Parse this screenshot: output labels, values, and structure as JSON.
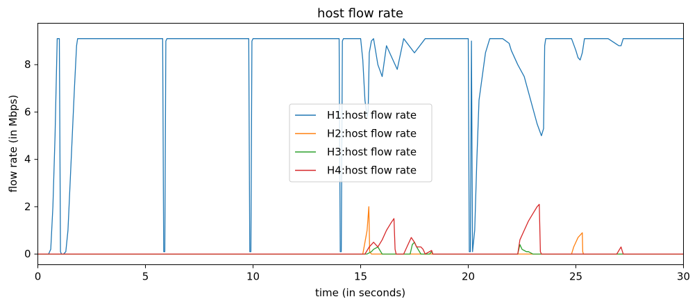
{
  "chart_data": {
    "type": "line",
    "title": "host flow rate",
    "xlabel": "time (in seconds)",
    "ylabel": "flow rate (in Mbps)",
    "xlim": [
      0,
      30
    ],
    "ylim": [
      -0.45,
      9.75
    ],
    "xticks": [
      0,
      5,
      10,
      15,
      20,
      25,
      30
    ],
    "xtick_labels": [
      "0",
      "5",
      "10",
      "15",
      "20",
      "25",
      "30"
    ],
    "yticks": [
      0,
      2,
      4,
      6,
      8
    ],
    "ytick_labels": [
      "0",
      "2",
      "4",
      "6",
      "8"
    ],
    "grid": false,
    "legend_position": "center",
    "series": [
      {
        "name": "H1:host flow rate",
        "color": "#1f77b4",
        "x": [
          0,
          0.5,
          0.55,
          0.6,
          0.7,
          0.8,
          0.85,
          0.9,
          1.0,
          1.05,
          1.1,
          1.2,
          1.3,
          1.4,
          1.5,
          1.6,
          1.7,
          1.8,
          1.85,
          5.8,
          5.85,
          5.9,
          5.95,
          6.0,
          6.1,
          9.8,
          9.85,
          9.9,
          9.95,
          10.0,
          10.1,
          14.0,
          14.05,
          14.1,
          14.15,
          14.2,
          14.3,
          15.0,
          15.1,
          15.2,
          15.3,
          15.35,
          15.4,
          15.5,
          15.6,
          15.8,
          16.0,
          16.2,
          16.5,
          16.7,
          17.0,
          17.5,
          18.0,
          18.5,
          19.0,
          20.0,
          20.05,
          20.1,
          20.15,
          20.2,
          20.3,
          20.4,
          20.5,
          20.8,
          21.0,
          21.3,
          21.6,
          21.9,
          22.0,
          22.3,
          22.6,
          22.9,
          23.2,
          23.4,
          23.5,
          23.55,
          23.6,
          24.8,
          25.0,
          25.1,
          25.2,
          25.3,
          25.4,
          25.6,
          26.5,
          27.0,
          27.1,
          27.2,
          27.3,
          30.0
        ],
        "y": [
          0,
          0,
          0.1,
          0.2,
          2.0,
          5.0,
          7.0,
          9.1,
          9.1,
          0.1,
          0,
          0,
          0.1,
          1.0,
          3.0,
          5.0,
          7.0,
          8.8,
          9.1,
          9.1,
          0.1,
          0.1,
          9.0,
          9.1,
          9.1,
          9.1,
          0.1,
          0.1,
          9.0,
          9.1,
          9.1,
          9.1,
          0.1,
          0.1,
          9.0,
          9.1,
          9.1,
          9.1,
          8.2,
          6.5,
          5.8,
          6.0,
          8.5,
          9.0,
          9.1,
          8.0,
          7.5,
          8.8,
          8.2,
          7.8,
          9.1,
          8.5,
          9.1,
          9.1,
          9.1,
          9.1,
          0.1,
          0.1,
          9.0,
          0.1,
          1.0,
          4.0,
          6.5,
          8.5,
          9.1,
          9.1,
          9.1,
          8.9,
          8.6,
          8.0,
          7.5,
          6.5,
          5.5,
          5.0,
          5.3,
          8.8,
          9.1,
          9.1,
          8.6,
          8.3,
          8.2,
          8.5,
          9.1,
          9.1,
          9.1,
          8.8,
          8.8,
          9.1,
          9.1,
          9.1
        ]
      },
      {
        "name": "H2:host flow rate",
        "color": "#ff7f0e",
        "x": [
          0,
          15.1,
          15.2,
          15.3,
          15.38,
          15.42,
          15.5,
          24.8,
          24.9,
          25.0,
          25.1,
          25.2,
          25.3,
          25.32,
          25.35,
          30.0
        ],
        "y": [
          0,
          0,
          0.5,
          1.0,
          2.0,
          0.1,
          0,
          0,
          0.3,
          0.5,
          0.7,
          0.8,
          0.9,
          0.1,
          0,
          0
        ]
      },
      {
        "name": "H3:host flow rate",
        "color": "#2ca02c",
        "x": [
          0,
          15.3,
          15.5,
          15.6,
          15.8,
          16.0,
          17.3,
          17.4,
          17.5,
          17.6,
          17.8,
          18.2,
          18.3,
          18.35,
          22.3,
          22.4,
          22.5,
          22.6,
          22.7,
          22.8,
          22.9,
          23.0,
          30.0
        ],
        "y": [
          0,
          0,
          0.1,
          0.2,
          0.3,
          0,
          0,
          0.4,
          0.5,
          0.3,
          0,
          0,
          0.1,
          0,
          0,
          0.4,
          0.2,
          0.15,
          0.1,
          0.1,
          0.05,
          0,
          0
        ]
      },
      {
        "name": "H4:host flow rate",
        "color": "#d62728",
        "x": [
          0,
          15.2,
          15.4,
          15.6,
          15.8,
          16.0,
          16.2,
          16.4,
          16.55,
          16.6,
          16.65,
          17.0,
          17.2,
          17.35,
          17.5,
          17.6,
          17.7,
          17.8,
          17.9,
          18.0,
          18.3,
          18.35,
          22.3,
          22.4,
          22.6,
          22.8,
          23.0,
          23.2,
          23.3,
          23.35,
          23.4,
          26.9,
          27.1,
          27.15,
          27.2,
          30.0
        ],
        "y": [
          0,
          0,
          0.3,
          0.5,
          0.3,
          0.6,
          1.0,
          1.3,
          1.5,
          0.2,
          0,
          0,
          0.4,
          0.7,
          0.5,
          0.3,
          0.3,
          0.3,
          0.2,
          0,
          0.15,
          0,
          0,
          0.6,
          1.0,
          1.4,
          1.7,
          2.0,
          2.1,
          0.1,
          0,
          0,
          0.3,
          0.15,
          0,
          0
        ]
      }
    ]
  }
}
